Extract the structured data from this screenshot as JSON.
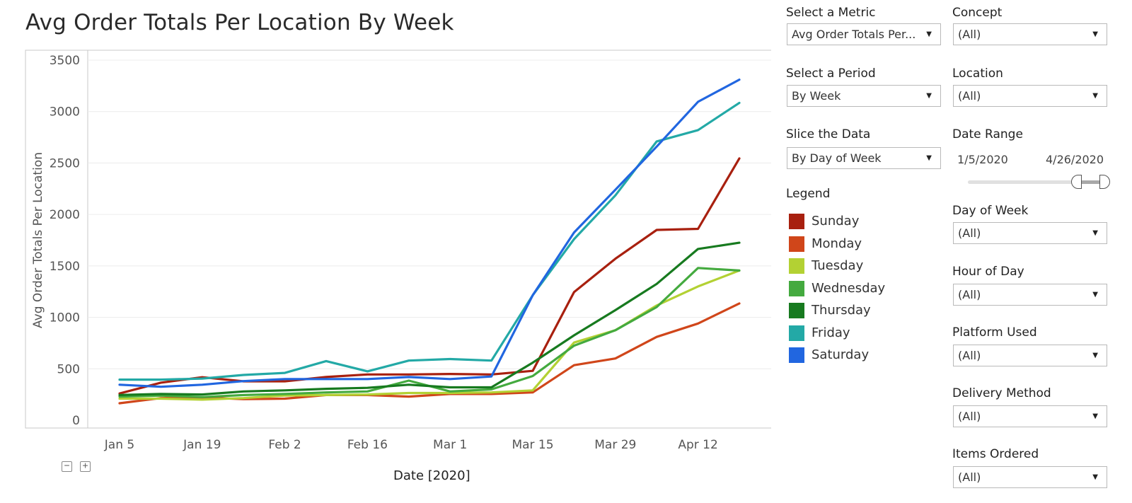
{
  "title": "Avg Order Totals Per Location By Week",
  "x_axis_title": "Date [2020]",
  "zoom": {
    "minus": "−",
    "plus": "+"
  },
  "controls": {
    "metric": {
      "label": "Select a Metric",
      "value": "Avg Order Totals Per..."
    },
    "period": {
      "label": "Select a Period",
      "value": "By Week"
    },
    "slice": {
      "label": "Slice the Data",
      "value": "By Day of Week"
    },
    "concept": {
      "label": "Concept",
      "value": "(All)"
    },
    "location": {
      "label": "Location",
      "value": "(All)"
    },
    "date_range": {
      "label": "Date Range",
      "start": "1/5/2020",
      "end": "4/26/2020",
      "selected_fraction_start": 0.79,
      "selected_fraction_end": 1.0
    },
    "day_of_week": {
      "label": "Day of Week",
      "value": "(All)"
    },
    "hour_of_day": {
      "label": "Hour of Day",
      "value": "(All)"
    },
    "platform": {
      "label": "Platform Used",
      "value": "(All)"
    },
    "delivery": {
      "label": "Delivery Method",
      "value": "(All)"
    },
    "items": {
      "label": "Items Ordered",
      "value": "(All)"
    }
  },
  "legend": {
    "title": "Legend",
    "items": [
      {
        "label": "Sunday",
        "color": "#a8200f"
      },
      {
        "label": "Monday",
        "color": "#d0461a"
      },
      {
        "label": "Tuesday",
        "color": "#b3d133"
      },
      {
        "label": "Wednesday",
        "color": "#44aa3f"
      },
      {
        "label": "Thursday",
        "color": "#177a1f"
      },
      {
        "label": "Friday",
        "color": "#23a9a6"
      },
      {
        "label": "Saturday",
        "color": "#2166e0"
      }
    ]
  },
  "chart_data": {
    "type": "line",
    "title": "Avg Order Totals Per Location By Week",
    "xlabel": "Date [2020]",
    "ylabel": "Avg Order Totals Per Location",
    "ylim": [
      0,
      3500
    ],
    "yticks": [
      0,
      500,
      1000,
      1500,
      2000,
      2500,
      3000,
      3500
    ],
    "x": [
      "Jan 5",
      "Jan 12",
      "Jan 19",
      "Jan 26",
      "Feb 2",
      "Feb 9",
      "Feb 16",
      "Feb 23",
      "Mar 1",
      "Mar 8",
      "Mar 15",
      "Mar 22",
      "Mar 29",
      "Apr 5",
      "Apr 12",
      "Apr 19",
      "Apr 26"
    ],
    "xtick_labels": [
      "Jan 5",
      "Jan 19",
      "Feb 2",
      "Feb 16",
      "Mar 1",
      "Mar 15",
      "Mar 29",
      "Apr 12"
    ],
    "grid": "horizontal",
    "legend_position": "right",
    "series": [
      {
        "name": "Sunday",
        "color": "#a8200f",
        "values": [
          260,
          365,
          418,
          378,
          378,
          420,
          445,
          445,
          450,
          445,
          480,
          1245,
          1570,
          1850,
          1860,
          2545,
          null
        ]
      },
      {
        "name": "Monday",
        "color": "#d0461a",
        "values": [
          165,
          215,
          220,
          205,
          210,
          245,
          245,
          230,
          255,
          255,
          270,
          535,
          600,
          810,
          940,
          1135,
          null
        ]
      },
      {
        "name": "Tuesday",
        "color": "#b3d133",
        "values": [
          210,
          210,
          200,
          215,
          240,
          245,
          250,
          265,
          265,
          270,
          290,
          755,
          875,
          1115,
          1300,
          1455,
          null
        ]
      },
      {
        "name": "Wednesday",
        "color": "#44aa3f",
        "values": [
          230,
          240,
          225,
          245,
          255,
          270,
          280,
          385,
          280,
          300,
          430,
          725,
          875,
          1100,
          1480,
          1455,
          null
        ]
      },
      {
        "name": "Thursday",
        "color": "#177a1f",
        "values": [
          245,
          255,
          250,
          280,
          290,
          305,
          315,
          345,
          320,
          320,
          560,
          825,
          1070,
          1325,
          1665,
          1725,
          null
        ]
      },
      {
        "name": "Friday",
        "color": "#23a9a6",
        "values": [
          395,
          395,
          405,
          440,
          460,
          575,
          475,
          580,
          595,
          580,
          1215,
          1760,
          2185,
          2710,
          2820,
          3085,
          null
        ]
      },
      {
        "name": "Saturday",
        "color": "#2166e0",
        "values": [
          345,
          325,
          345,
          380,
          400,
          400,
          400,
          420,
          400,
          425,
          1215,
          1825,
          2240,
          2660,
          3095,
          3310,
          null
        ]
      }
    ]
  }
}
